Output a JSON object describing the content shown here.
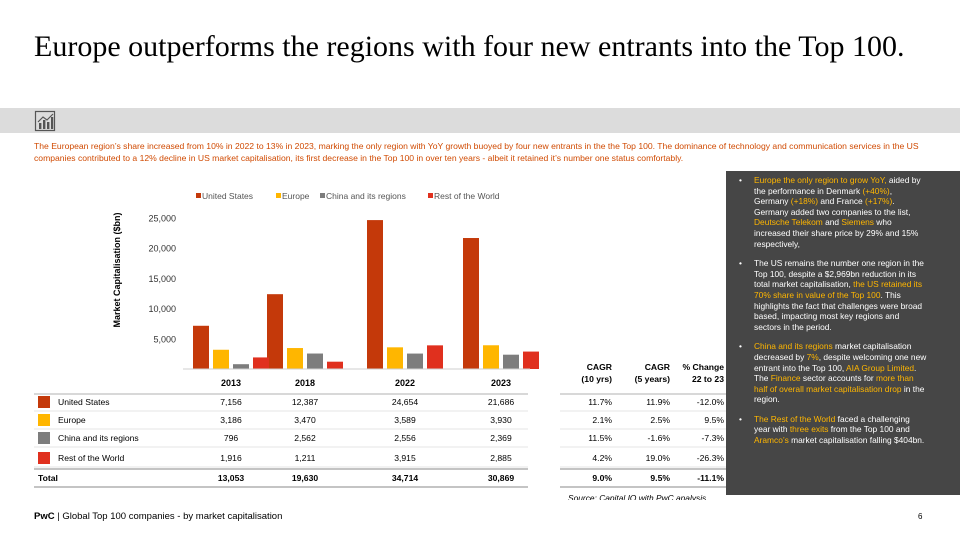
{
  "title": "Europe outperforms the regions with four new entrants into the Top 100.",
  "intro": "The European region’s share increased from 10% in 2022 to 13% in 2023, marking the only region with YoY growth buoyed by four new entrants in the the Top 100. The dominance of technology and communication services in the US companies contributed to a 12% decline in US market capitalisation, its first decrease in the Top 100 in over ten years - albeit it retained it’s number one status comfortably.",
  "colors": {
    "accent": "#d04a02",
    "highlight": "#ffb600",
    "panel": "#464646",
    "band": "#dcdcdc"
  },
  "icons": {
    "band": "chart-trend-icon"
  },
  "chart_data": {
    "type": "bar",
    "categories": [
      "2013",
      "2018",
      "2022",
      "2023"
    ],
    "ylabel": "Market Capitalisation ($bn)",
    "ylim": [
      0,
      25000
    ],
    "yticks": [
      5000,
      10000,
      15000,
      20000,
      25000
    ],
    "ytick_labels": [
      "5,000",
      "10,000",
      "15,000",
      "20,000",
      "25,000"
    ],
    "legend_position": "top",
    "series": [
      {
        "name": "United States",
        "color": "#c4390a",
        "values": [
          7156,
          12387,
          24654,
          21686
        ]
      },
      {
        "name": "Europe",
        "color": "#ffb600",
        "values": [
          3186,
          3470,
          3589,
          3930
        ]
      },
      {
        "name": "China and its regions",
        "color": "#7d7d7d",
        "values": [
          796,
          2562,
          2556,
          2369
        ]
      },
      {
        "name": "Rest of the World",
        "color": "#e0301e",
        "values": [
          1916,
          1211,
          3915,
          2885
        ]
      }
    ],
    "table": {
      "growth_headers": [
        [
          "CAGR",
          "(10 yrs)"
        ],
        [
          "CAGR",
          "(5 years)"
        ],
        [
          "% Change",
          "22 to 23"
        ]
      ],
      "rows": [
        {
          "label": "United States",
          "values": [
            "7,156",
            "12,387",
            "24,654",
            "21,686"
          ],
          "growth": [
            "11.7%",
            "11.9%",
            "-12.0%"
          ]
        },
        {
          "label": "Europe",
          "values": [
            "3,186",
            "3,470",
            "3,589",
            "3,930"
          ],
          "growth": [
            "2.1%",
            "2.5%",
            "9.5%"
          ]
        },
        {
          "label": "China and its regions",
          "values": [
            "796",
            "2,562",
            "2,556",
            "2,369"
          ],
          "growth": [
            "11.5%",
            "-1.6%",
            "-7.3%"
          ]
        },
        {
          "label": "Rest of the World",
          "values": [
            "1,916",
            "1,211",
            "3,915",
            "2,885"
          ],
          "growth": [
            "4.2%",
            "19.0%",
            "-26.3%"
          ]
        }
      ],
      "total": {
        "label": "Total",
        "values": [
          "13,053",
          "19,630",
          "34,714",
          "30,869"
        ],
        "growth": [
          "9.0%",
          "9.5%",
          "-11.1%"
        ]
      }
    },
    "source": "Source: Capital IQ with PwC analysis"
  },
  "right_panel": [
    [
      {
        "t": "Europe the only region to grow YoY,",
        "h": true
      },
      {
        "t": " aided by the performance in Denmark "
      },
      {
        "t": "(+40%)",
        "h": true
      },
      {
        "t": ", Germany "
      },
      {
        "t": "(+18%)",
        "h": true
      },
      {
        "t": " and France "
      },
      {
        "t": "(+17%)",
        "h": true
      },
      {
        "t": ". Germany added two companies to the list, "
      },
      {
        "t": "Deutsche Telekom",
        "h": true
      },
      {
        "t": " and "
      },
      {
        "t": "Siemens",
        "h": true
      },
      {
        "t": " who increased their share price by 29% and 15% respectively,"
      }
    ],
    [
      {
        "t": "The US remains the number one region in the Top 100, despite a $2,969bn reduction in its total market capitalisation, "
      },
      {
        "t": "the US retained its 70% share in value of the Top 100",
        "h": true
      },
      {
        "t": ". This highlights the fact that challenges were broad based, impacting most key regions and sectors in the period."
      }
    ],
    [
      {
        "t": "China and its regions",
        "h": true
      },
      {
        "t": " market capitalisation decreased by "
      },
      {
        "t": "7%",
        "h": true
      },
      {
        "t": ", despite welcoming one new entrant into the Top 100, "
      },
      {
        "t": "AIA Group Limited",
        "h": true
      },
      {
        "t": ". The "
      },
      {
        "t": "Finance",
        "h": true
      },
      {
        "t": " sector accounts for "
      },
      {
        "t": "more than half of overall market capitalisation drop",
        "h": true
      },
      {
        "t": " in the region."
      }
    ],
    [
      {
        "t": "The Rest of the World",
        "h": true
      },
      {
        "t": " faced a challenging year with "
      },
      {
        "t": "three exits",
        "h": true
      },
      {
        "t": " from the Top 100 and "
      },
      {
        "t": "Aramco’s",
        "h": true
      },
      {
        "t": " market capitalisation falling $404bn."
      }
    ]
  ],
  "footer": {
    "brand": "PwC",
    "separator": " | ",
    "text": "Global Top 100 companies - by market capitalisation"
  },
  "page_number": "6"
}
